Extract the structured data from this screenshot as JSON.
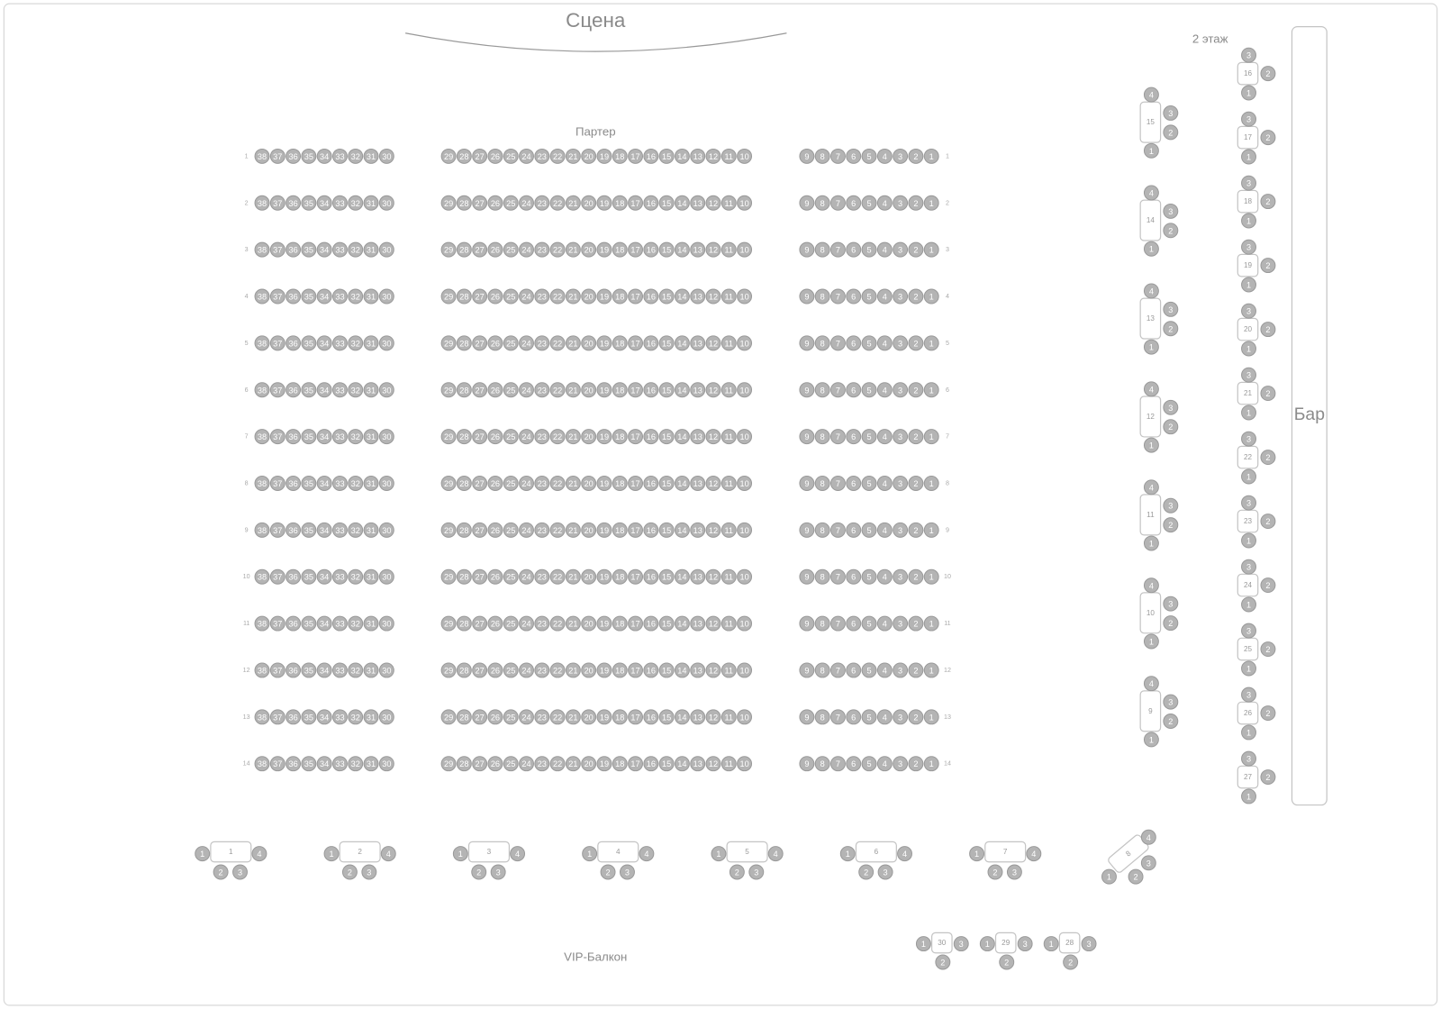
{
  "stage_label": "Сцена",
  "parterre_label": "Партер",
  "second_floor_label": "2 этаж",
  "bar_label": "Бар",
  "vip_label": "VIP-Балкон",
  "colors": {
    "seat_fill": "#b4b4b4",
    "seat_stroke": "#9a9a9a",
    "seat_text": "#ffffff",
    "table_stroke": "#c4c4c4",
    "label": "#8a8a8a"
  },
  "parterre": {
    "rows": [
      "1",
      "2",
      "3",
      "4",
      "5",
      "6",
      "7",
      "8",
      "9",
      "10",
      "11",
      "12",
      "13",
      "14"
    ],
    "blocks": [
      [
        "38",
        "37",
        "36",
        "35",
        "34",
        "33",
        "32",
        "31",
        "30"
      ],
      [
        "29",
        "28",
        "27",
        "26",
        "25",
        "24",
        "23",
        "22",
        "21",
        "20",
        "19",
        "18",
        "17",
        "16",
        "15",
        "14",
        "13",
        "12",
        "11",
        "10"
      ],
      [
        "9",
        "8",
        "7",
        "6",
        "5",
        "4",
        "3",
        "2",
        "1"
      ]
    ]
  },
  "tables": {
    "bottom_row": [
      {
        "number": "1",
        "seats": [
          "1",
          "2",
          "3",
          "4"
        ]
      },
      {
        "number": "2",
        "seats": [
          "1",
          "2",
          "3",
          "4"
        ]
      },
      {
        "number": "3",
        "seats": [
          "1",
          "2",
          "3",
          "4"
        ]
      },
      {
        "number": "4",
        "seats": [
          "1",
          "2",
          "3",
          "4"
        ]
      },
      {
        "number": "5",
        "seats": [
          "1",
          "2",
          "3",
          "4"
        ]
      },
      {
        "number": "6",
        "seats": [
          "1",
          "2",
          "3",
          "4"
        ]
      },
      {
        "number": "7",
        "seats": [
          "1",
          "2",
          "3",
          "4"
        ]
      }
    ],
    "corner": {
      "number": "8",
      "seats": [
        "1",
        "2",
        "3",
        "4"
      ]
    },
    "second_floor_left": [
      {
        "number": "15",
        "seats": [
          "1",
          "2",
          "3",
          "4"
        ]
      },
      {
        "number": "14",
        "seats": [
          "1",
          "2",
          "3",
          "4"
        ]
      },
      {
        "number": "13",
        "seats": [
          "1",
          "2",
          "3",
          "4"
        ]
      },
      {
        "number": "12",
        "seats": [
          "1",
          "2",
          "3",
          "4"
        ]
      },
      {
        "number": "11",
        "seats": [
          "1",
          "2",
          "3",
          "4"
        ]
      },
      {
        "number": "10",
        "seats": [
          "1",
          "2",
          "3",
          "4"
        ]
      },
      {
        "number": "9",
        "seats": [
          "1",
          "2",
          "3",
          "4"
        ]
      }
    ],
    "second_floor_bar": [
      {
        "number": "16",
        "seats": [
          "1",
          "2",
          "3"
        ]
      },
      {
        "number": "17",
        "seats": [
          "1",
          "2",
          "3"
        ]
      },
      {
        "number": "18",
        "seats": [
          "1",
          "2",
          "3"
        ]
      },
      {
        "number": "19",
        "seats": [
          "1",
          "2",
          "3"
        ]
      },
      {
        "number": "20",
        "seats": [
          "1",
          "2",
          "3"
        ]
      },
      {
        "number": "21",
        "seats": [
          "1",
          "2",
          "3"
        ]
      },
      {
        "number": "22",
        "seats": [
          "1",
          "2",
          "3"
        ]
      },
      {
        "number": "23",
        "seats": [
          "1",
          "2",
          "3"
        ]
      },
      {
        "number": "24",
        "seats": [
          "1",
          "2",
          "3"
        ]
      },
      {
        "number": "25",
        "seats": [
          "1",
          "2",
          "3"
        ]
      },
      {
        "number": "26",
        "seats": [
          "1",
          "2",
          "3"
        ]
      },
      {
        "number": "27",
        "seats": [
          "1",
          "2",
          "3"
        ]
      }
    ],
    "vip": [
      {
        "number": "30",
        "seats": [
          "1",
          "2",
          "3"
        ]
      },
      {
        "number": "29",
        "seats": [
          "1",
          "2",
          "3"
        ]
      },
      {
        "number": "28",
        "seats": [
          "1",
          "2",
          "3"
        ]
      }
    ]
  }
}
